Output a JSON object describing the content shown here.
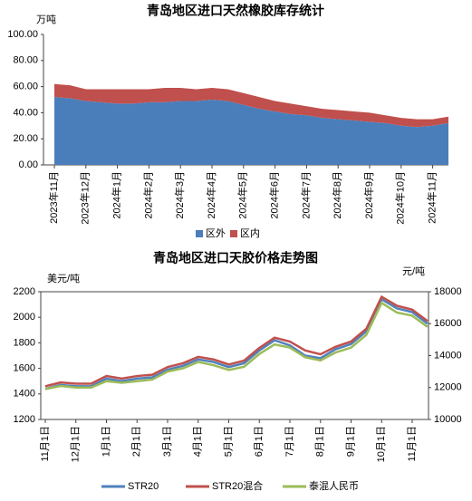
{
  "chart_data": [
    {
      "type": "area",
      "stacked": true,
      "title": "青岛地区进口天然橡胶库存统计",
      "y_label": "万吨",
      "categories": [
        "2023年11月",
        null,
        "2023年12月",
        null,
        "2024年1月",
        null,
        "2024年2月",
        null,
        "2024年3月",
        null,
        "2024年4月",
        null,
        "2024年5月",
        null,
        "2024年6月",
        null,
        "2024年7月",
        null,
        "2024年8月",
        null,
        "2024年9月",
        null,
        "2024年10月",
        null,
        "2024年11月",
        null
      ],
      "series": [
        {
          "name": "区外",
          "color": "#4a7ebb",
          "values": [
            52,
            51,
            49,
            48,
            47,
            47,
            48,
            48,
            49,
            49,
            50,
            49,
            46,
            43,
            41,
            39,
            38,
            36,
            35,
            34,
            33,
            32,
            30,
            29,
            30,
            32
          ]
        },
        {
          "name": "区内",
          "color": "#c0504d",
          "values": [
            10,
            10,
            9,
            10,
            11,
            11,
            10,
            11,
            10,
            9,
            9,
            9,
            9,
            9,
            8,
            8,
            7,
            7,
            7,
            7,
            7,
            6,
            6,
            6,
            5,
            5
          ]
        }
      ],
      "ylim": [
        0,
        100
      ],
      "yticks": [
        {
          "value": 0,
          "label": "0.00"
        },
        {
          "value": 20,
          "label": "20.00"
        },
        {
          "value": 40,
          "label": "40.00"
        },
        {
          "value": 60,
          "label": "60.00"
        },
        {
          "value": 80,
          "label": "80.00"
        },
        {
          "value": 100,
          "label": "100.00"
        }
      ],
      "legend": "bottom"
    },
    {
      "type": "line",
      "title": "青岛地区进口天胶价格走势图",
      "y_label": "美元/吨",
      "y2_label": "元/吨",
      "categories": [
        "11月1日",
        null,
        "12月1日",
        null,
        "1月1日",
        null,
        "2月1日",
        null,
        "3月1日",
        null,
        "4月1日",
        null,
        "5月1日",
        null,
        "6月1日",
        null,
        "7月1日",
        null,
        "8月1日",
        null,
        "9月1日",
        null,
        "10月1日",
        null,
        "11月1日",
        null
      ],
      "series": [
        {
          "name": "STR20",
          "color": "#4f81bd",
          "values": [
            1440,
            1470,
            1460,
            1460,
            1520,
            1500,
            1520,
            1530,
            1590,
            1620,
            1670,
            1650,
            1610,
            1640,
            1740,
            1820,
            1780,
            1700,
            1680,
            1750,
            1790,
            1890,
            2140,
            2070,
            2040,
            1950
          ]
        },
        {
          "name": "STR20混合",
          "color": "#c0504d",
          "values": [
            1460,
            1490,
            1480,
            1480,
            1540,
            1520,
            1540,
            1550,
            1610,
            1640,
            1690,
            1670,
            1630,
            1660,
            1760,
            1840,
            1810,
            1740,
            1710,
            1770,
            1810,
            1910,
            2160,
            2090,
            2060,
            1970
          ]
        },
        {
          "name": "泰混人民币",
          "color": "#9bbb59",
          "axis": "y2",
          "values": [
            11900,
            12100,
            12000,
            12000,
            12400,
            12300,
            12400,
            12500,
            13000,
            13200,
            13600,
            13400,
            13100,
            13300,
            14100,
            14700,
            14500,
            13900,
            13700,
            14200,
            14500,
            15300,
            17300,
            16700,
            16500,
            15800
          ]
        }
      ],
      "ylim": [
        1200,
        2200
      ],
      "yticks": [
        1200,
        1400,
        1600,
        1800,
        2000,
        2200
      ],
      "y2lim": [
        10000,
        18000
      ],
      "y2ticks": [
        10000,
        12000,
        14000,
        16000,
        18000
      ],
      "legend": "bottom"
    }
  ]
}
